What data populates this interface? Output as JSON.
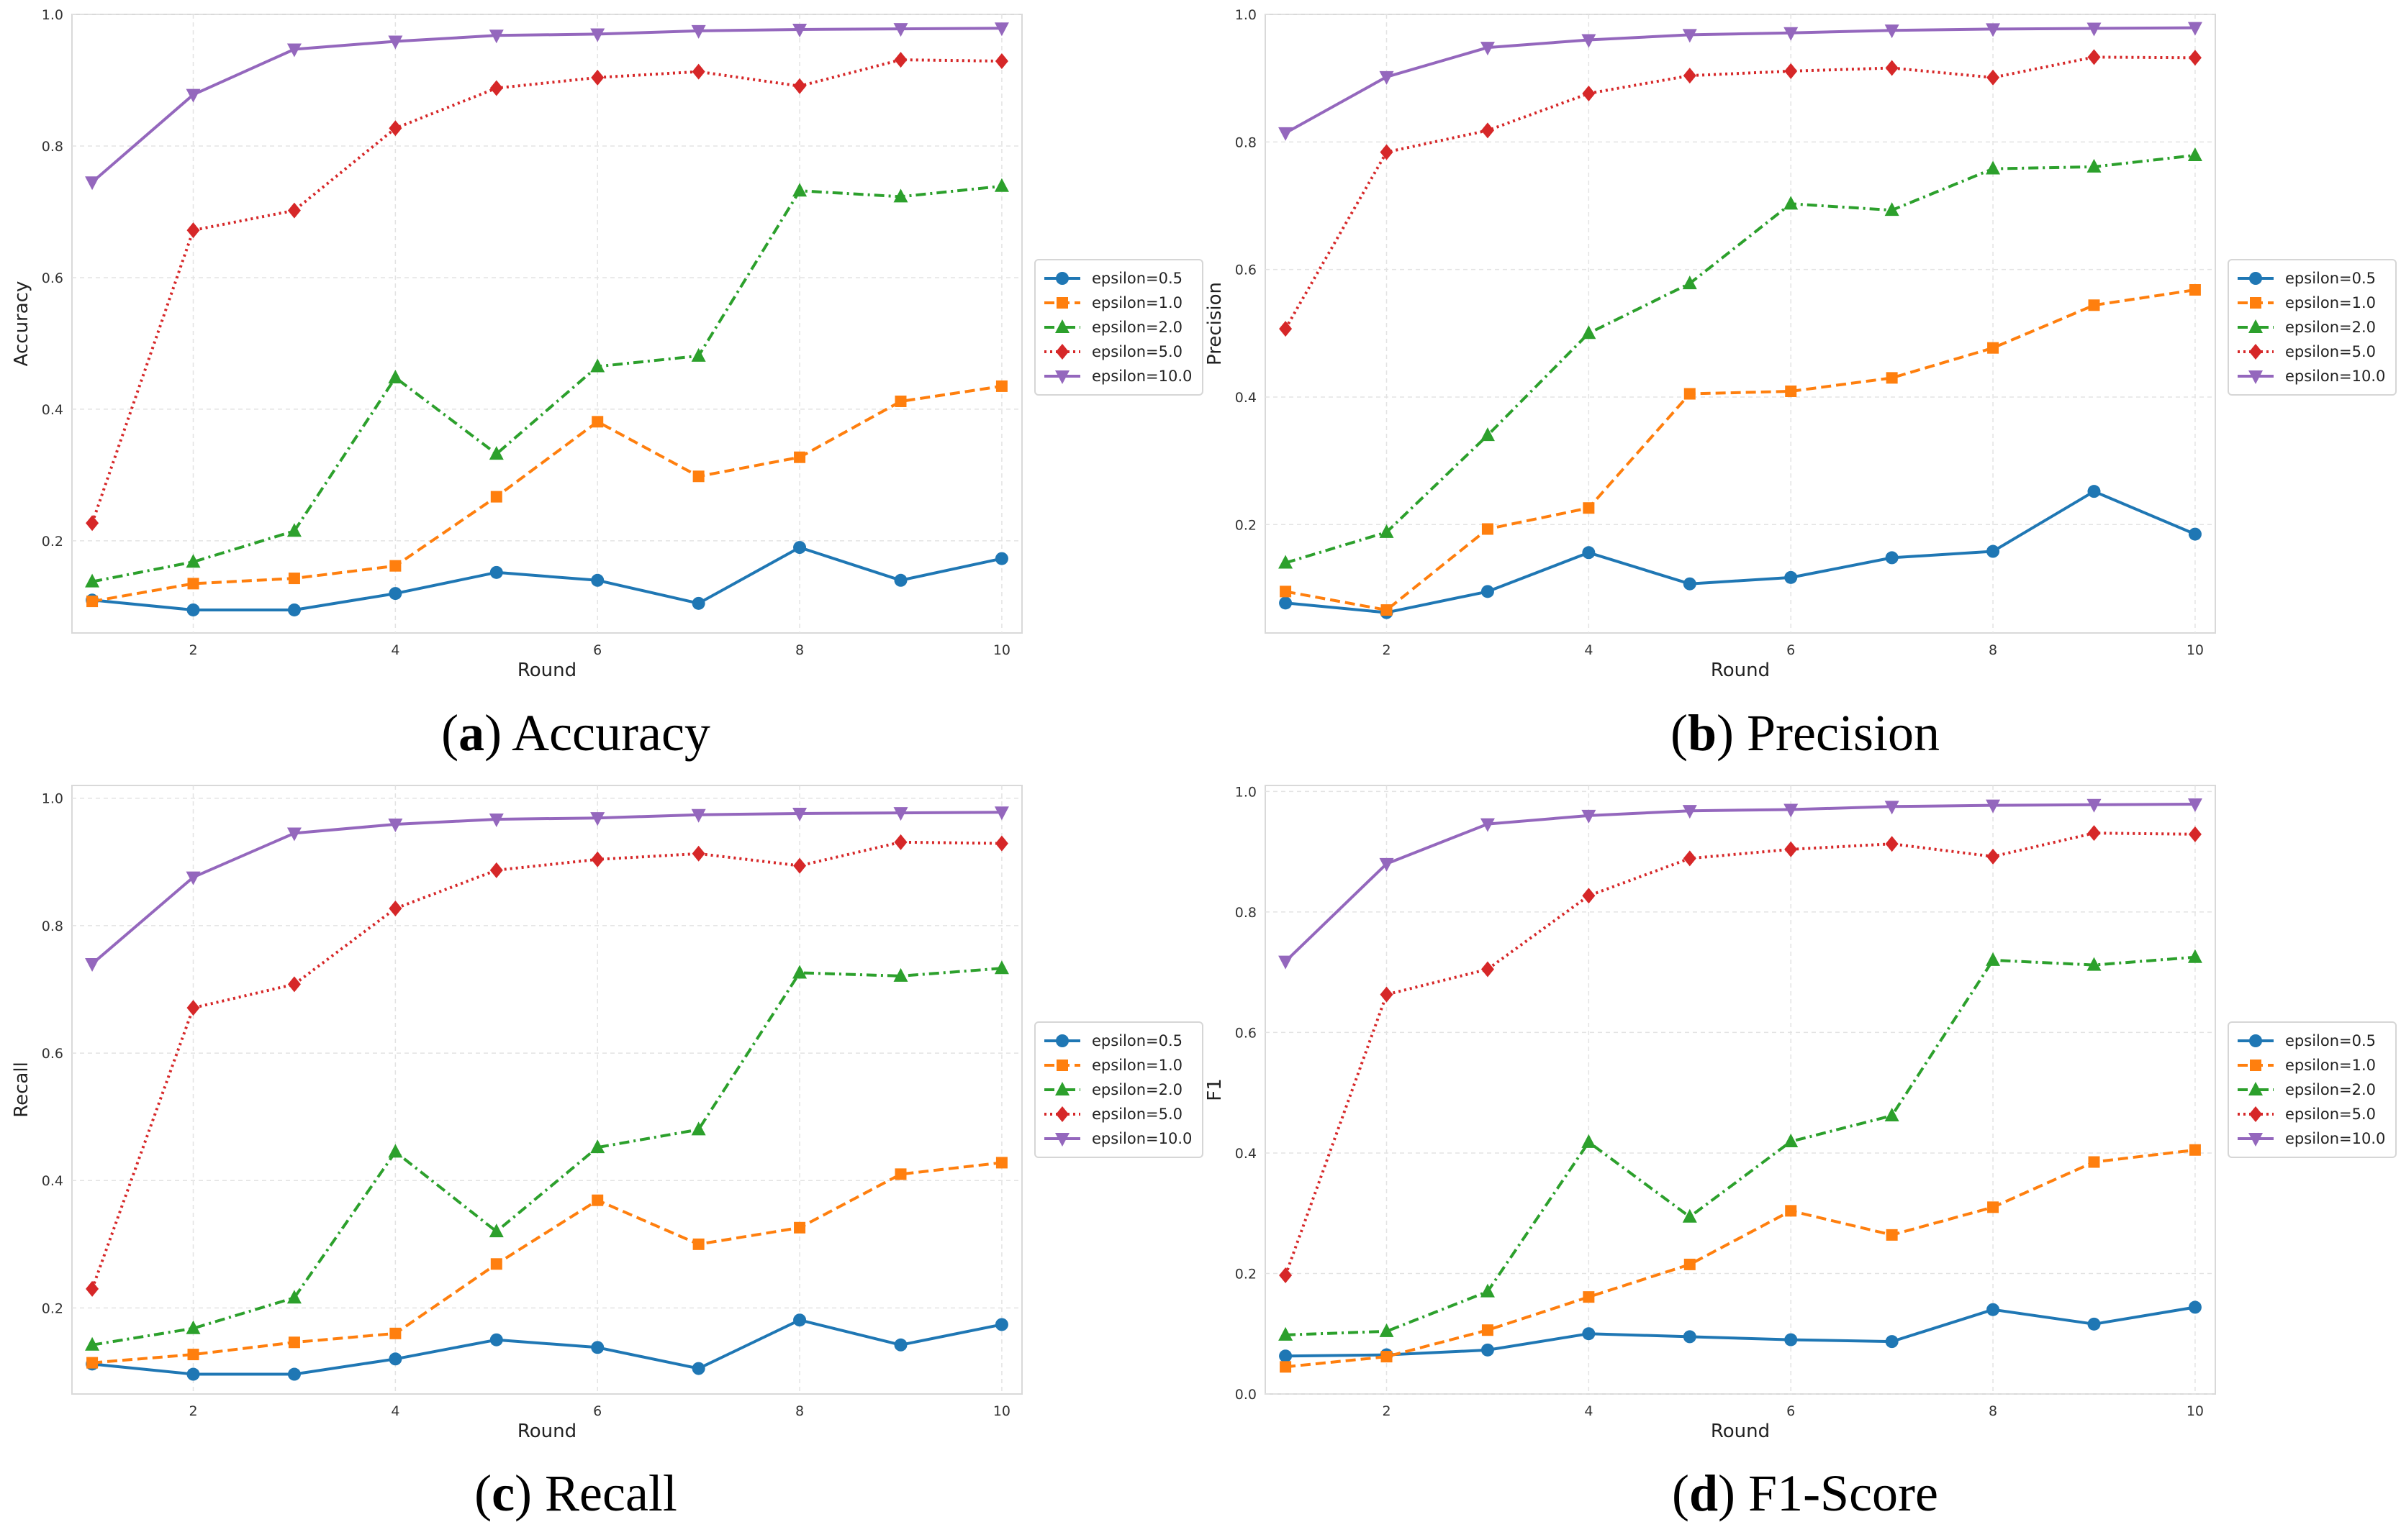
{
  "figure": {
    "panels": [
      {
        "label": "a",
        "caption": "Accuracy"
      },
      {
        "label": "b",
        "caption": "Precision"
      },
      {
        "label": "c",
        "caption": "Recall"
      },
      {
        "label": "d",
        "caption": "F1-Score"
      }
    ]
  },
  "series_styles": [
    {
      "name": "epsilon=0.5",
      "color": "#1f77b4",
      "marker": "circle",
      "dash": "solid"
    },
    {
      "name": "epsilon=1.0",
      "color": "#ff7f0e",
      "marker": "square",
      "dash": "dashed"
    },
    {
      "name": "epsilon=2.0",
      "color": "#2ca02c",
      "marker": "triangle-up",
      "dash": "dashdot"
    },
    {
      "name": "epsilon=5.0",
      "color": "#d62728",
      "marker": "diamond",
      "dash": "dotted"
    },
    {
      "name": "epsilon=10.0",
      "color": "#9467bd",
      "marker": "triangle-down",
      "dash": "solid"
    }
  ],
  "chart_data": [
    {
      "type": "line",
      "title": "",
      "xlabel": "Round",
      "ylabel": "Accuracy",
      "x": [
        1,
        2,
        3,
        4,
        5,
        6,
        7,
        8,
        9,
        10
      ],
      "xticks": [
        "2",
        "4",
        "6",
        "8",
        "10"
      ],
      "yticks": [
        "0.2",
        "0.4",
        "0.6",
        "0.8",
        "1.0"
      ],
      "xlim": [
        0.8,
        10.2
      ],
      "ylim": [
        0.06,
        1.0
      ],
      "grid": true,
      "legend_position": "right",
      "series": [
        {
          "name": "epsilon=0.5",
          "values": [
            0.11,
            0.095,
            0.095,
            0.12,
            0.152,
            0.14,
            0.105,
            0.19,
            0.14,
            0.173
          ]
        },
        {
          "name": "epsilon=1.0",
          "values": [
            0.108,
            0.135,
            0.143,
            0.162,
            0.267,
            0.381,
            0.298,
            0.327,
            0.412,
            0.435
          ]
        },
        {
          "name": "epsilon=2.0",
          "values": [
            0.138,
            0.168,
            0.215,
            0.448,
            0.332,
            0.465,
            0.481,
            0.732,
            0.723,
            0.739
          ]
        },
        {
          "name": "epsilon=5.0",
          "values": [
            0.227,
            0.672,
            0.702,
            0.827,
            0.888,
            0.904,
            0.913,
            0.891,
            0.931,
            0.929
          ]
        },
        {
          "name": "epsilon=10.0",
          "values": [
            0.745,
            0.878,
            0.947,
            0.959,
            0.968,
            0.97,
            0.975,
            0.977,
            0.978,
            0.979
          ]
        }
      ]
    },
    {
      "type": "line",
      "title": "",
      "xlabel": "Round",
      "ylabel": "Precision",
      "x": [
        1,
        2,
        3,
        4,
        5,
        6,
        7,
        8,
        9,
        10
      ],
      "xticks": [
        "2",
        "4",
        "6",
        "8",
        "10"
      ],
      "yticks": [
        "0.2",
        "0.4",
        "0.6",
        "0.8",
        "1.0"
      ],
      "xlim": [
        0.8,
        10.2
      ],
      "ylim": [
        0.03,
        1.0
      ],
      "grid": true,
      "legend_position": "right",
      "series": [
        {
          "name": "epsilon=0.5",
          "values": [
            0.077,
            0.062,
            0.095,
            0.156,
            0.107,
            0.117,
            0.148,
            0.158,
            0.252,
            0.185
          ]
        },
        {
          "name": "epsilon=1.0",
          "values": [
            0.095,
            0.066,
            0.193,
            0.226,
            0.405,
            0.409,
            0.43,
            0.477,
            0.544,
            0.568
          ]
        },
        {
          "name": "epsilon=2.0",
          "values": [
            0.14,
            0.188,
            0.34,
            0.5,
            0.578,
            0.703,
            0.693,
            0.758,
            0.761,
            0.779
          ]
        },
        {
          "name": "epsilon=5.0",
          "values": [
            0.507,
            0.784,
            0.818,
            0.876,
            0.904,
            0.911,
            0.916,
            0.901,
            0.933,
            0.932
          ]
        },
        {
          "name": "epsilon=10.0",
          "values": [
            0.814,
            0.902,
            0.948,
            0.96,
            0.968,
            0.971,
            0.975,
            0.977,
            0.978,
            0.979
          ]
        }
      ]
    },
    {
      "type": "line",
      "title": "",
      "xlabel": "Round",
      "ylabel": "Recall",
      "x": [
        1,
        2,
        3,
        4,
        5,
        6,
        7,
        8,
        9,
        10
      ],
      "xticks": [
        "2",
        "4",
        "6",
        "8",
        "10"
      ],
      "yticks": [
        "0.2",
        "0.4",
        "0.6",
        "0.8",
        "1.0"
      ],
      "xlim": [
        0.8,
        10.2
      ],
      "ylim": [
        0.065,
        1.02
      ],
      "grid": true,
      "legend_position": "right",
      "series": [
        {
          "name": "epsilon=0.5",
          "values": [
            0.112,
            0.096,
            0.096,
            0.12,
            0.15,
            0.138,
            0.105,
            0.181,
            0.142,
            0.174
          ]
        },
        {
          "name": "epsilon=1.0",
          "values": [
            0.114,
            0.127,
            0.146,
            0.16,
            0.269,
            0.369,
            0.3,
            0.326,
            0.41,
            0.428
          ]
        },
        {
          "name": "epsilon=2.0",
          "values": [
            0.142,
            0.168,
            0.216,
            0.445,
            0.32,
            0.452,
            0.48,
            0.726,
            0.721,
            0.733
          ]
        },
        {
          "name": "epsilon=5.0",
          "values": [
            0.23,
            0.671,
            0.708,
            0.827,
            0.887,
            0.904,
            0.913,
            0.894,
            0.931,
            0.929
          ]
        },
        {
          "name": "epsilon=10.0",
          "values": [
            0.74,
            0.876,
            0.945,
            0.959,
            0.967,
            0.969,
            0.974,
            0.976,
            0.977,
            0.978
          ]
        }
      ]
    },
    {
      "type": "line",
      "title": "",
      "xlabel": "Round",
      "ylabel": "F1",
      "x": [
        1,
        2,
        3,
        4,
        5,
        6,
        7,
        8,
        9,
        10
      ],
      "xticks": [
        "2",
        "4",
        "6",
        "8",
        "10"
      ],
      "yticks": [
        "0.0",
        "0.2",
        "0.4",
        "0.6",
        "0.8",
        "1.0"
      ],
      "xlim": [
        0.8,
        10.2
      ],
      "ylim": [
        0.0,
        1.01
      ],
      "grid": true,
      "legend_position": "right",
      "series": [
        {
          "name": "epsilon=0.5",
          "values": [
            0.063,
            0.065,
            0.073,
            0.1,
            0.095,
            0.09,
            0.087,
            0.14,
            0.116,
            0.144
          ]
        },
        {
          "name": "epsilon=1.0",
          "values": [
            0.045,
            0.062,
            0.106,
            0.161,
            0.215,
            0.304,
            0.264,
            0.31,
            0.385,
            0.405
          ]
        },
        {
          "name": "epsilon=2.0",
          "values": [
            0.098,
            0.104,
            0.17,
            0.418,
            0.294,
            0.419,
            0.462,
            0.72,
            0.712,
            0.725
          ]
        },
        {
          "name": "epsilon=5.0",
          "values": [
            0.197,
            0.663,
            0.705,
            0.827,
            0.889,
            0.904,
            0.913,
            0.892,
            0.931,
            0.929
          ]
        },
        {
          "name": "epsilon=10.0",
          "values": [
            0.718,
            0.88,
            0.946,
            0.96,
            0.968,
            0.97,
            0.975,
            0.977,
            0.978,
            0.979
          ]
        }
      ]
    }
  ]
}
